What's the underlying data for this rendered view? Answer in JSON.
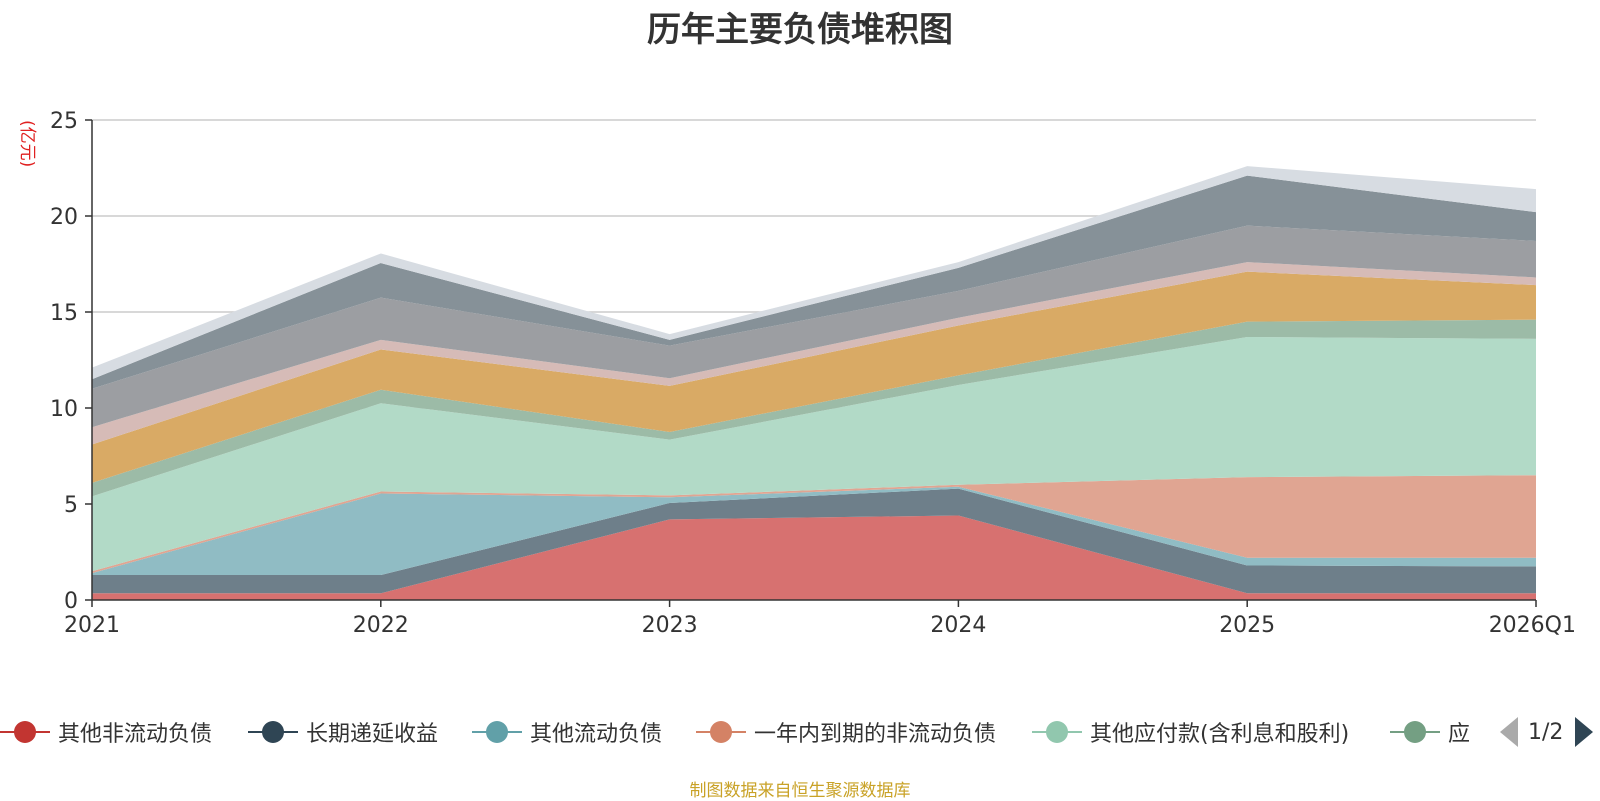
{
  "title": "历年主要负债堆积图",
  "unit_label": "(亿元)",
  "source": "制图数据来自恒生聚源数据库",
  "legend": {
    "pager_text": "1/2",
    "visible_items": [
      {
        "label": "其他非流动负债",
        "color": "#c23531"
      },
      {
        "label": "长期递延收益",
        "color": "#2f4554"
      },
      {
        "label": "其他流动负债",
        "color": "#61a0a8"
      },
      {
        "label": "一年内到期的非流动负债",
        "color": "#d48265"
      },
      {
        "label": "其他应付款(含利息和股利)",
        "color": "#91c7ae"
      },
      {
        "label": "应",
        "color": "#749f83"
      }
    ]
  },
  "chart_data": {
    "type": "area",
    "stacked": true,
    "title": "历年主要负债堆积图",
    "ylabel": "(亿元)",
    "ylim": [
      0,
      25
    ],
    "yticks": [
      0,
      5,
      10,
      15,
      20,
      25
    ],
    "grid": true,
    "legend_position": "bottom",
    "x": [
      "2021",
      "2022",
      "2023",
      "2024",
      "2025",
      "2026Q1"
    ],
    "series": [
      {
        "name": "其他非流动负债",
        "color": "#d77170",
        "values": [
          0.35,
          0.35,
          4.2,
          4.4,
          0.35,
          0.35
        ]
      },
      {
        "name": "长期递延收益",
        "color": "#6e7f8a",
        "values": [
          0.95,
          0.95,
          0.85,
          1.4,
          1.45,
          1.4
        ]
      },
      {
        "name": "其他流动负债",
        "color": "#90bcc4",
        "values": [
          0.1,
          4.25,
          0.3,
          0.1,
          0.4,
          0.45
        ]
      },
      {
        "name": "一年内到期的非流动负债",
        "color": "#e0a592",
        "values": [
          0.1,
          0.1,
          0.1,
          0.1,
          4.2,
          4.3
        ]
      },
      {
        "values": [
          3.9,
          4.6,
          2.9,
          5.2,
          7.3,
          7.1
        ],
        "color": "#b2dac7"
      },
      {
        "values": [
          0.7,
          0.7,
          0.4,
          0.5,
          0.8,
          1.0
        ],
        "color": "#9cbba7"
      },
      {
        "values": [
          2.0,
          2.1,
          2.4,
          2.6,
          2.6,
          1.8
        ],
        "color": "#d9aa65"
      },
      {
        "values": [
          0.9,
          0.5,
          0.4,
          0.4,
          0.5,
          0.4
        ],
        "color": "#d6bbb7"
      },
      {
        "values": [
          2.0,
          2.2,
          1.7,
          1.4,
          1.9,
          1.9
        ],
        "color": "#9c9ea2"
      },
      {
        "values": [
          0.5,
          1.8,
          0.3,
          1.2,
          2.6,
          1.5
        ],
        "color": "#869198"
      },
      {
        "values": [
          0.6,
          0.5,
          0.3,
          0.3,
          0.5,
          1.2
        ],
        "color": "#d7dce2"
      }
    ]
  }
}
